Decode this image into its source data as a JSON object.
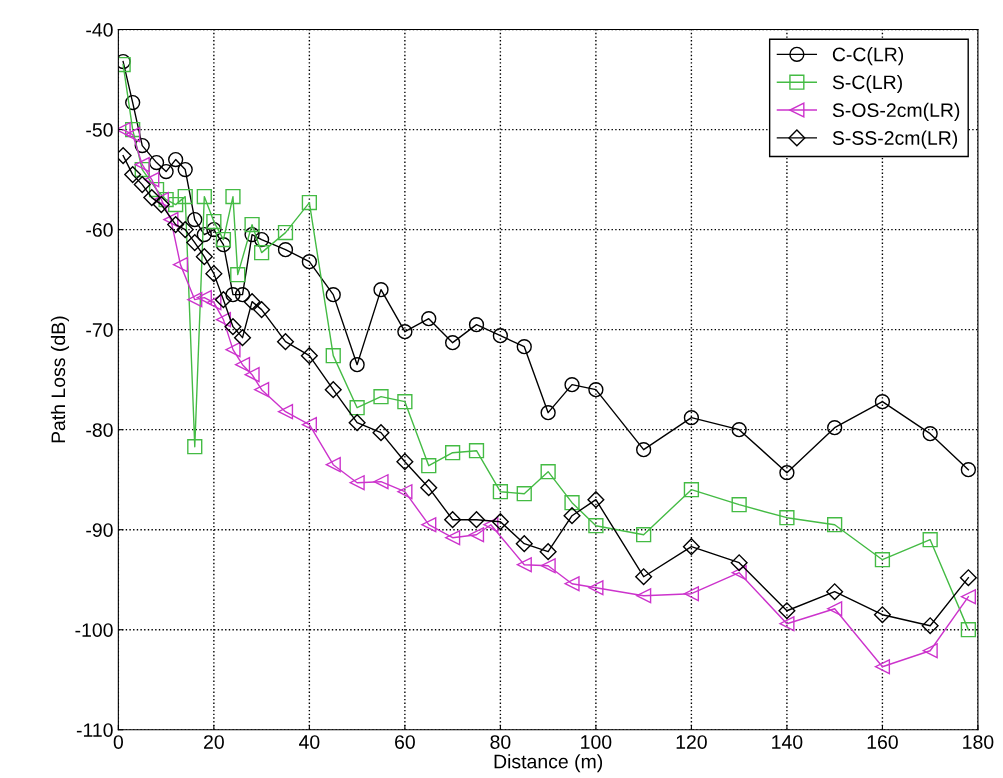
{
  "chart_data": {
    "type": "line",
    "xlabel": "Distance (m)",
    "ylabel": "Path Loss (dB)",
    "xlim": [
      0,
      180
    ],
    "xticks": [
      0,
      20,
      40,
      60,
      80,
      100,
      120,
      140,
      160,
      180
    ],
    "ylim": [
      -110,
      -40
    ],
    "yticks": [
      -110,
      -100,
      -90,
      -80,
      -70,
      -60,
      -50,
      -40
    ],
    "grid": true,
    "legend": "top right",
    "line_style": "solid",
    "series": [
      {
        "name": "C-C(LR)",
        "color": "#000000",
        "marker": "circle",
        "x": [
          1,
          3,
          5,
          8,
          10,
          12,
          14,
          16,
          18,
          20,
          22,
          24,
          26,
          28,
          30,
          35,
          40,
          45,
          50,
          55,
          60,
          65,
          70,
          75,
          80,
          85,
          90,
          95,
          100,
          110,
          120,
          130,
          140,
          150,
          160,
          170,
          178
        ],
        "values": [
          -43.2,
          -47.3,
          -51.6,
          -53.3,
          -54.2,
          -53,
          -54,
          -59,
          -60.5,
          -60,
          -61.5,
          -66.5,
          -66.5,
          -60.5,
          -61,
          -62,
          -63.2,
          -66.5,
          -73.5,
          -66,
          -70.2,
          -68.9,
          -71.3,
          -69.5,
          -70.6,
          -71.7,
          -78.3,
          -75.5,
          -76,
          -82,
          -78.8,
          -80,
          -84.3,
          -79.8,
          -77.2,
          -80.4,
          -84
        ]
      },
      {
        "name": "S-C(LR)",
        "color": "#44bb44",
        "marker": "square",
        "x": [
          1,
          3,
          5,
          8,
          10,
          12,
          14,
          16,
          18,
          20,
          22,
          24,
          25,
          28,
          30,
          35,
          40,
          45,
          50,
          55,
          60,
          65,
          70,
          75,
          80,
          85,
          90,
          95,
          100,
          110,
          120,
          130,
          140,
          150,
          160,
          170,
          178
        ],
        "values": [
          -43.5,
          -50,
          -54,
          -56,
          -57,
          -57.5,
          -56.7,
          -81.7,
          -56.7,
          -59.2,
          -61,
          -56.7,
          -64.5,
          -59.5,
          -62.3,
          -60.3,
          -57.3,
          -72.6,
          -77.8,
          -76.7,
          -77.2,
          -83.6,
          -82.3,
          -82.1,
          -86.2,
          -86.4,
          -84.2,
          -87.3,
          -89.6,
          -90.5,
          -86,
          -87.5,
          -88.8,
          -89.5,
          -93,
          -91,
          -100
        ]
      },
      {
        "name": "S-OS-2cm(LR)",
        "color": "#cc33cc",
        "marker": "triangle",
        "x": [
          1,
          3,
          5,
          7,
          9,
          11,
          13,
          16,
          18,
          20,
          22,
          24,
          26,
          28,
          30,
          35,
          40,
          45,
          50,
          55,
          60,
          65,
          70,
          75,
          78,
          85,
          90,
          95,
          100,
          110,
          120,
          130,
          140,
          150,
          160,
          170,
          178
        ],
        "values": [
          -50,
          -50.5,
          -53.5,
          -55,
          -57,
          -59,
          -63.5,
          -67,
          -66.8,
          -67.3,
          -69,
          -72,
          -73.5,
          -74.5,
          -76,
          -78.2,
          -79.5,
          -83.5,
          -85.3,
          -85.2,
          -86.2,
          -89.5,
          -90.8,
          -90.5,
          -89.5,
          -93.5,
          -93.6,
          -95.4,
          -95.8,
          -96.6,
          -96.4,
          -94.3,
          -99.4,
          -97.9,
          -103.7,
          -102.1,
          -96.7
        ]
      },
      {
        "name": "S-SS-2cm(LR)",
        "color": "#000000",
        "marker": "diamond",
        "x": [
          1,
          3,
          5,
          7,
          9,
          12,
          14,
          16,
          18,
          20,
          22,
          24,
          26,
          28,
          30,
          35,
          40,
          45,
          50,
          55,
          60,
          65,
          70,
          75,
          80,
          85,
          90,
          95,
          100,
          110,
          120,
          130,
          140,
          150,
          160,
          170,
          178
        ],
        "values": [
          -52.6,
          -54.5,
          -55.5,
          -56.8,
          -57.5,
          -59.5,
          -60,
          -61.3,
          -62.7,
          -64.4,
          -67,
          -69.7,
          -70.8,
          -67.2,
          -68,
          -71.2,
          -72.6,
          -76,
          -79.3,
          -80.3,
          -83.2,
          -85.8,
          -89,
          -89,
          -89.2,
          -91.4,
          -92.2,
          -88.6,
          -87,
          -94.7,
          -91.7,
          -93.3,
          -98.1,
          -96.2,
          -98.5,
          -99.6,
          -94.8
        ]
      }
    ]
  }
}
